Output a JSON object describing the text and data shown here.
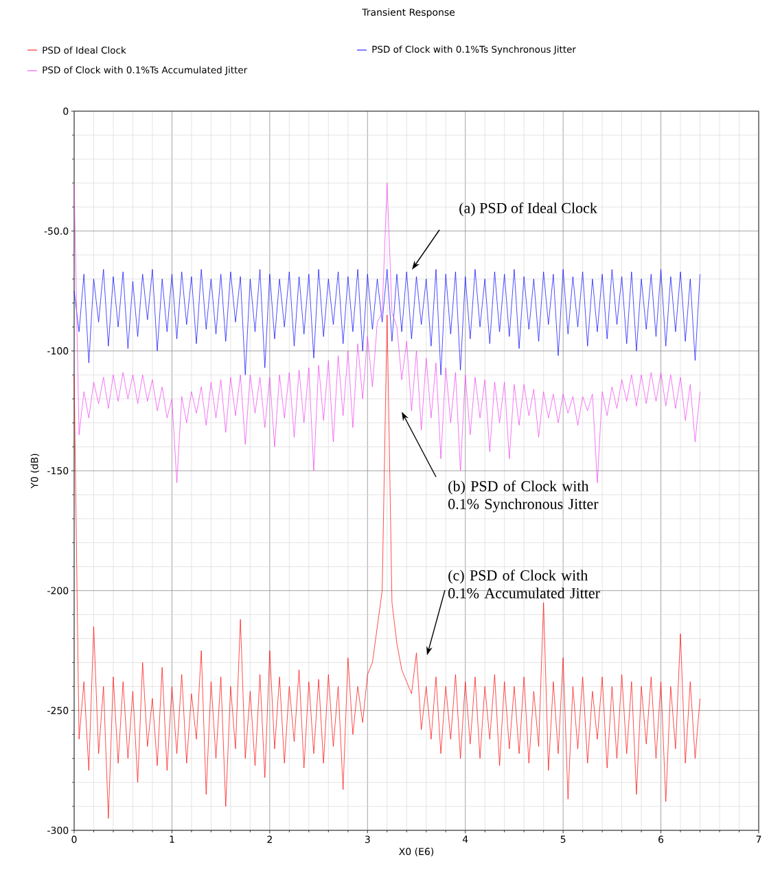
{
  "chart_data": {
    "type": "line",
    "title": "Transient Response",
    "xlabel": "X0 (E6)",
    "ylabel": "Y0 (dB)",
    "xlim": [
      0,
      7
    ],
    "ylim": [
      -300,
      0
    ],
    "xticks": [
      0,
      1,
      2,
      3,
      4,
      5,
      6,
      7
    ],
    "yticks": [
      0,
      {
        "value": -50,
        "label": "-50.0"
      },
      -100,
      -150,
      -200,
      -250,
      -300
    ],
    "grid": true,
    "legend": "top",
    "x": [
      0,
      0.05,
      0.1,
      0.15,
      0.2,
      0.25,
      0.3,
      0.35,
      0.4,
      0.45,
      0.5,
      0.55,
      0.6,
      0.65,
      0.7,
      0.75,
      0.8,
      0.85,
      0.9,
      0.95,
      1.0,
      1.05,
      1.1,
      1.15,
      1.2,
      1.25,
      1.3,
      1.35,
      1.4,
      1.45,
      1.5,
      1.55,
      1.6,
      1.65,
      1.7,
      1.75,
      1.8,
      1.85,
      1.9,
      1.95,
      2.0,
      2.05,
      2.1,
      2.15,
      2.2,
      2.25,
      2.3,
      2.35,
      2.4,
      2.45,
      2.5,
      2.55,
      2.6,
      2.65,
      2.7,
      2.75,
      2.8,
      2.85,
      2.9,
      2.95,
      3.0,
      3.05,
      3.1,
      3.15,
      3.2,
      3.25,
      3.3,
      3.35,
      3.4,
      3.45,
      3.5,
      3.55,
      3.6,
      3.65,
      3.7,
      3.75,
      3.8,
      3.85,
      3.9,
      3.95,
      4.0,
      4.05,
      4.1,
      4.15,
      4.2,
      4.25,
      4.3,
      4.35,
      4.4,
      4.45,
      4.5,
      4.55,
      4.6,
      4.65,
      4.7,
      4.75,
      4.8,
      4.85,
      4.9,
      4.95,
      5.0,
      5.05,
      5.1,
      5.15,
      5.2,
      5.25,
      5.3,
      5.35,
      5.4,
      5.45,
      5.5,
      5.55,
      5.6,
      5.65,
      5.7,
      5.75,
      5.8,
      5.85,
      5.9,
      5.95,
      6.0,
      6.05,
      6.1,
      6.15,
      6.2,
      6.25,
      6.3,
      6.35,
      6.4
    ],
    "series": [
      {
        "name": "PSD of Ideal Clock",
        "color": "#ff0000",
        "values": [
          -110,
          -262,
          -238,
          -275,
          -215,
          -268,
          -240,
          -295,
          -236,
          -272,
          -238,
          -270,
          -242,
          -280,
          -230,
          -265,
          -245,
          -273,
          -232,
          -275,
          -240,
          -268,
          -235,
          -272,
          -243,
          -262,
          -225,
          -285,
          -238,
          -270,
          -236,
          -290,
          -240,
          -266,
          -212,
          -270,
          -242,
          -273,
          -235,
          -278,
          -225,
          -266,
          -236,
          -272,
          -240,
          -263,
          -233,
          -274,
          -238,
          -268,
          -237,
          -272,
          -235,
          -265,
          -240,
          -283,
          -228,
          -260,
          -240,
          -255,
          -235,
          -230,
          -215,
          -200,
          -85,
          -205,
          -222,
          -233,
          -238,
          -243,
          -226,
          -258,
          -240,
          -262,
          -236,
          -268,
          -240,
          -262,
          -235,
          -270,
          -238,
          -264,
          -236,
          -270,
          -240,
          -262,
          -235,
          -273,
          -238,
          -266,
          -240,
          -268,
          -236,
          -272,
          -242,
          -265,
          -205,
          -275,
          -238,
          -268,
          -228,
          -287,
          -240,
          -266,
          -236,
          -272,
          -242,
          -262,
          -236,
          -274,
          -240,
          -270,
          -235,
          -268,
          -238,
          -285,
          -240,
          -264,
          -236,
          -270,
          -238,
          -288,
          -240,
          -266,
          -218,
          -272,
          -238,
          -270,
          -245
        ]
      },
      {
        "name": "PSD of Clock with 0.1%Ts Synchronous Jitter",
        "color": "#0000ff",
        "values": [
          -75,
          -92,
          -68,
          -105,
          -70,
          -88,
          -66,
          -98,
          -69,
          -90,
          -67,
          -99,
          -71,
          -94,
          -68,
          -87,
          -66,
          -100,
          -70,
          -92,
          -68,
          -95,
          -67,
          -89,
          -69,
          -97,
          -66,
          -91,
          -70,
          -93,
          -68,
          -96,
          -67,
          -88,
          -69,
          -110,
          -70,
          -92,
          -66,
          -107,
          -68,
          -95,
          -70,
          -90,
          -67,
          -98,
          -69,
          -93,
          -68,
          -103,
          -66,
          -94,
          -70,
          -89,
          -67,
          -97,
          -69,
          -92,
          -66,
          -100,
          -68,
          -91,
          -70,
          -88,
          -66,
          -96,
          -68,
          -92,
          -67,
          -95,
          -69,
          -89,
          -70,
          -98,
          -66,
          -110,
          -68,
          -93,
          -67,
          -108,
          -69,
          -95,
          -66,
          -90,
          -70,
          -97,
          -67,
          -92,
          -68,
          -94,
          -66,
          -99,
          -69,
          -91,
          -70,
          -96,
          -67,
          -89,
          -68,
          -102,
          -66,
          -93,
          -69,
          -90,
          -67,
          -98,
          -70,
          -92,
          -68,
          -95,
          -66,
          -89,
          -69,
          -97,
          -67,
          -100,
          -70,
          -91,
          -68,
          -94,
          -66,
          -98,
          -69,
          -92,
          -67,
          -96,
          -70,
          -104,
          -68
        ]
      },
      {
        "name": "PSD of Clock with 0.1%Ts Accumulated Jitter",
        "color": "#f03cf0",
        "values": [
          -30,
          -135,
          -117,
          -128,
          -113,
          -122,
          -111,
          -124,
          -110,
          -121,
          -109,
          -120,
          -110,
          -122,
          -110,
          -121,
          -112,
          -125,
          -115,
          -128,
          -120,
          -155,
          -119,
          -130,
          -117,
          -126,
          -115,
          -131,
          -113,
          -128,
          -112,
          -134,
          -111,
          -127,
          -110,
          -139,
          -110,
          -126,
          -111,
          -132,
          -111,
          -140,
          -110,
          -128,
          -109,
          -136,
          -108,
          -130,
          -107,
          -150,
          -106,
          -129,
          -104,
          -138,
          -102,
          -127,
          -100,
          -132,
          -97,
          -120,
          -94,
          -115,
          -88,
          -84,
          -30,
          -84,
          -90,
          -112,
          -96,
          -125,
          -100,
          -133,
          -103,
          -128,
          -105,
          -145,
          -107,
          -130,
          -109,
          -150,
          -110,
          -135,
          -111,
          -128,
          -112,
          -142,
          -113,
          -130,
          -113,
          -145,
          -114,
          -131,
          -114,
          -127,
          -116,
          -136,
          -117,
          -128,
          -118,
          -130,
          -118,
          -126,
          -119,
          -131,
          -119,
          -125,
          -118,
          -155,
          -117,
          -127,
          -115,
          -124,
          -112,
          -121,
          -110,
          -123,
          -110,
          -122,
          -109,
          -121,
          -109,
          -123,
          -110,
          -124,
          -111,
          -129,
          -114,
          -138,
          -117
        ]
      }
    ],
    "annotations": [
      "(a) PSD of Ideal Clock",
      "(b) PSD of Clock with 0.1% Synchronous Jitter",
      "(c) PSD of Clock with 0.1% Accumulated Jitter"
    ]
  }
}
